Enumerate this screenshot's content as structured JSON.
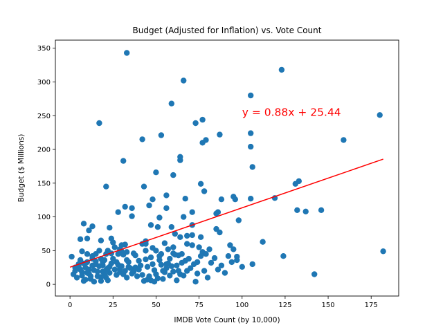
{
  "chart_data": {
    "type": "scatter",
    "title": "Budget (Adjusted for Inflation) vs. Vote Count",
    "xlabel": "IMDB Vote Count (by 10,000)",
    "ylabel": "Budget ($ Millions)",
    "xlim": [
      -8.5,
      191
    ],
    "ylim": [
      -17.3,
      362
    ],
    "x_ticks": [
      0,
      25,
      50,
      75,
      100,
      125,
      150,
      175
    ],
    "y_ticks": [
      0,
      50,
      100,
      150,
      200,
      250,
      300,
      350
    ],
    "grid": false,
    "legend": "none",
    "point_color": "#1f77b4",
    "regression": {
      "slope": 0.88,
      "intercept": 25.44,
      "x_range": [
        0,
        182
      ],
      "color": "#ff0000",
      "label": "y = 0.88x + 25.44",
      "label_x": 100,
      "label_y": 250
    },
    "points": [
      [
        33,
        343
      ],
      [
        123,
        318
      ],
      [
        66,
        302
      ],
      [
        105,
        280
      ],
      [
        59,
        268
      ],
      [
        17,
        239
      ],
      [
        73,
        239
      ],
      [
        77,
        244
      ],
      [
        180,
        251
      ],
      [
        105,
        224
      ],
      [
        53,
        221
      ],
      [
        87,
        222
      ],
      [
        79,
        214
      ],
      [
        42,
        215
      ],
      [
        77,
        210
      ],
      [
        159,
        214
      ],
      [
        105,
        204
      ],
      [
        31,
        183
      ],
      [
        64,
        189
      ],
      [
        64,
        184
      ],
      [
        106,
        174
      ],
      [
        50,
        166
      ],
      [
        60,
        162
      ],
      [
        21,
        145
      ],
      [
        43,
        145
      ],
      [
        76,
        149
      ],
      [
        131,
        149
      ],
      [
        133,
        153
      ],
      [
        78,
        138
      ],
      [
        56,
        132
      ],
      [
        95,
        130
      ],
      [
        119,
        128
      ],
      [
        67,
        127
      ],
      [
        88,
        126
      ],
      [
        96,
        126
      ],
      [
        105,
        127
      ],
      [
        48,
        126
      ],
      [
        28,
        107
      ],
      [
        32,
        115
      ],
      [
        36,
        113
      ],
      [
        46,
        117
      ],
      [
        56,
        113
      ],
      [
        71,
        107
      ],
      [
        86,
        107
      ],
      [
        85,
        105
      ],
      [
        132,
        110
      ],
      [
        137,
        108
      ],
      [
        146,
        110
      ],
      [
        36,
        101
      ],
      [
        52,
        99
      ],
      [
        66,
        100
      ],
      [
        98,
        95
      ],
      [
        8,
        90
      ],
      [
        11,
        80
      ],
      [
        13,
        86
      ],
      [
        23,
        84
      ],
      [
        47,
        88
      ],
      [
        51,
        85
      ],
      [
        59,
        85
      ],
      [
        71,
        88
      ],
      [
        85,
        82
      ],
      [
        87,
        77
      ],
      [
        10,
        68
      ],
      [
        6,
        67
      ],
      [
        18,
        65
      ],
      [
        24,
        68
      ],
      [
        25,
        62
      ],
      [
        32,
        59
      ],
      [
        44,
        64
      ],
      [
        44,
        60
      ],
      [
        55,
        61
      ],
      [
        61,
        75
      ],
      [
        64,
        70
      ],
      [
        68,
        72
      ],
      [
        71,
        73
      ],
      [
        76,
        70
      ],
      [
        93,
        58
      ],
      [
        112,
        63
      ],
      [
        1,
        41
      ],
      [
        7,
        49
      ],
      [
        10,
        45
      ],
      [
        13,
        42
      ],
      [
        18,
        38
      ],
      [
        22,
        50
      ],
      [
        24,
        46
      ],
      [
        29,
        52
      ],
      [
        30,
        49
      ],
      [
        33,
        48
      ],
      [
        37,
        46
      ],
      [
        42,
        60
      ],
      [
        48,
        54
      ],
      [
        50,
        50
      ],
      [
        53,
        45
      ],
      [
        57,
        52
      ],
      [
        60,
        46
      ],
      [
        63,
        43
      ],
      [
        68,
        60
      ],
      [
        71,
        58
      ],
      [
        75,
        55
      ],
      [
        77,
        48
      ],
      [
        81,
        52
      ],
      [
        95,
        52
      ],
      [
        97,
        41
      ],
      [
        124,
        42
      ],
      [
        182,
        49
      ],
      [
        3,
        20
      ],
      [
        4,
        10
      ],
      [
        5,
        30
      ],
      [
        6,
        36
      ],
      [
        7,
        13
      ],
      [
        8,
        5
      ],
      [
        9,
        25
      ],
      [
        10,
        33
      ],
      [
        11,
        16
      ],
      [
        12,
        8
      ],
      [
        13,
        28
      ],
      [
        14,
        21
      ],
      [
        15,
        34
      ],
      [
        16,
        12
      ],
      [
        17,
        27
      ],
      [
        18,
        5
      ],
      [
        19,
        19
      ],
      [
        20,
        36
      ],
      [
        21,
        10
      ],
      [
        22,
        24
      ],
      [
        23,
        17
      ],
      [
        24,
        31
      ],
      [
        26,
        22
      ],
      [
        27,
        14
      ],
      [
        28,
        29
      ],
      [
        29,
        18
      ],
      [
        30,
        27
      ],
      [
        31,
        15
      ],
      [
        32,
        20
      ],
      [
        33,
        10
      ],
      [
        34,
        33
      ],
      [
        35,
        24
      ],
      [
        36,
        16
      ],
      [
        38,
        25
      ],
      [
        40,
        35
      ],
      [
        42,
        14
      ],
      [
        43,
        5
      ],
      [
        44,
        37
      ],
      [
        45,
        26
      ],
      [
        46,
        12
      ],
      [
        47,
        6
      ],
      [
        48,
        30
      ],
      [
        49,
        21
      ],
      [
        50,
        15
      ],
      [
        51,
        9
      ],
      [
        52,
        36
      ],
      [
        53,
        29
      ],
      [
        54,
        8
      ],
      [
        55,
        18
      ],
      [
        56,
        24
      ],
      [
        57,
        31
      ],
      [
        58,
        13
      ],
      [
        59,
        27
      ],
      [
        60,
        19
      ],
      [
        61,
        44
      ],
      [
        62,
        6
      ],
      [
        63,
        20
      ],
      [
        64,
        15
      ],
      [
        65,
        32
      ],
      [
        66,
        13
      ],
      [
        67,
        35
      ],
      [
        68,
        20
      ],
      [
        70,
        24
      ],
      [
        72,
        30
      ],
      [
        73,
        4
      ],
      [
        74,
        16
      ],
      [
        76,
        42
      ],
      [
        78,
        20
      ],
      [
        80,
        10
      ],
      [
        82,
        32
      ],
      [
        84,
        39
      ],
      [
        86,
        22
      ],
      [
        88,
        28
      ],
      [
        90,
        17
      ],
      [
        92,
        42
      ],
      [
        94,
        33
      ],
      [
        97,
        36
      ],
      [
        100,
        26
      ],
      [
        106,
        30
      ],
      [
        142,
        15
      ],
      [
        2,
        15
      ],
      [
        5,
        27
      ],
      [
        7,
        18
      ],
      [
        9,
        7
      ],
      [
        11,
        22
      ],
      [
        12,
        12
      ],
      [
        14,
        4
      ],
      [
        15,
        30
      ],
      [
        16,
        19
      ],
      [
        18,
        11
      ],
      [
        19,
        28
      ],
      [
        20,
        14
      ],
      [
        21,
        21
      ],
      [
        22,
        6
      ],
      [
        25,
        38
      ],
      [
        27,
        33
      ],
      [
        29,
        23
      ],
      [
        31,
        44
      ],
      [
        34,
        26
      ],
      [
        37,
        19
      ],
      [
        39,
        12
      ],
      [
        41,
        28
      ],
      [
        45,
        7
      ],
      [
        49,
        4
      ],
      [
        54,
        20
      ],
      [
        58,
        38
      ],
      [
        62,
        28
      ],
      [
        3,
        25
      ],
      [
        6,
        22
      ],
      [
        8,
        31
      ],
      [
        10,
        17
      ],
      [
        13,
        38
      ],
      [
        15,
        45
      ],
      [
        17,
        50
      ],
      [
        19,
        33
      ],
      [
        21,
        45
      ],
      [
        23,
        26
      ],
      [
        26,
        55
      ],
      [
        28,
        45
      ],
      [
        30,
        58
      ],
      [
        33,
        36
      ],
      [
        38,
        43
      ],
      [
        40,
        22
      ],
      [
        44,
        50
      ],
      [
        47,
        40
      ],
      [
        52,
        42
      ],
      [
        56,
        30
      ],
      [
        60,
        55
      ],
      [
        65,
        45
      ],
      [
        69,
        38
      ],
      [
        74,
        33
      ],
      [
        79,
        45
      ]
    ]
  }
}
